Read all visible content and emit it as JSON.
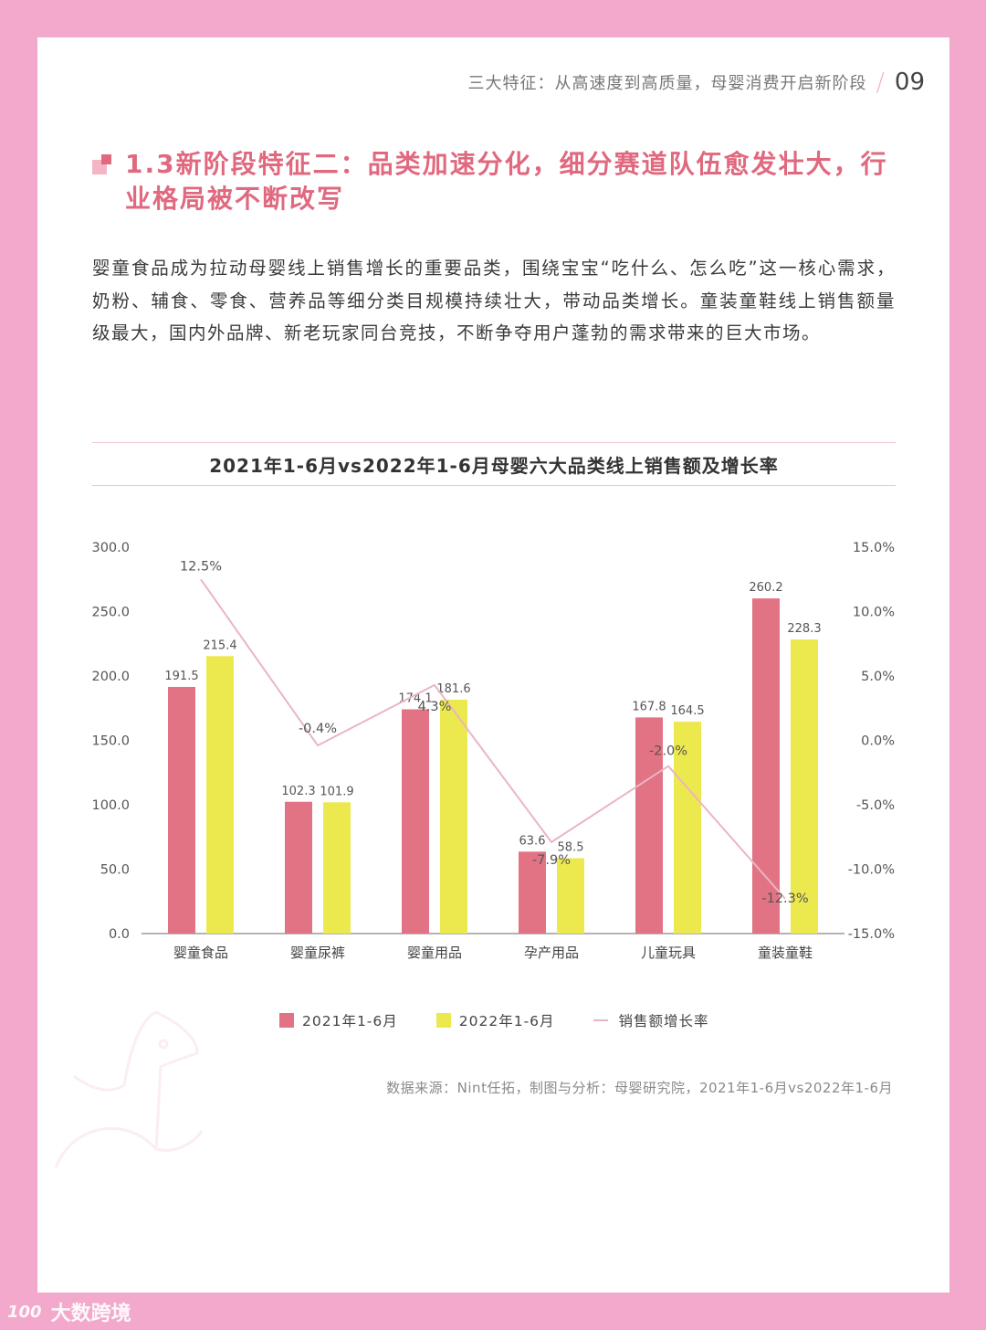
{
  "header": {
    "running_title": "三大特征：从高速度到高质量，母婴消费开启新阶段",
    "page_number": "09"
  },
  "section": {
    "title": "1.3新阶段特征二：品类加速分化，细分赛道队伍愈发壮大，行业格局被不断改写"
  },
  "body": {
    "paragraph": "婴童食品成为拉动母婴线上销售增长的重要品类，围绕宝宝“吃什么、怎么吃”这一核心需求，奶粉、辅食、零食、营养品等细分类目规模持续壮大，带动品类增长。童装童鞋线上销售额量级最大，国内外品牌、新老玩家同台竞技，不断争夺用户蓬勃的需求带来的巨大市场。"
  },
  "colors": {
    "frame": "#f2a9cb",
    "accent": "#e0697f",
    "series_2021": "#e27384",
    "series_2022": "#ece94f",
    "growth_line": "#eab5c3"
  },
  "chart_data": {
    "type": "bar",
    "title": "2021年1-6月vs2022年1-6月母婴六大品类线上销售额及增长率",
    "categories": [
      "婴童食品",
      "婴童尿裤",
      "婴童用品",
      "孕产用品",
      "儿童玩具",
      "童装童鞋"
    ],
    "series": [
      {
        "name": "2021年1-6月",
        "type": "bar",
        "axis": "left",
        "values": [
          191.5,
          102.3,
          174.1,
          63.6,
          167.8,
          260.2
        ]
      },
      {
        "name": "2022年1-6月",
        "type": "bar",
        "axis": "left",
        "values": [
          215.4,
          101.9,
          181.6,
          58.5,
          164.5,
          228.3
        ]
      },
      {
        "name": "销售额增长率",
        "type": "line",
        "axis": "right",
        "values": [
          12.5,
          -0.4,
          4.3,
          -7.9,
          -2.0,
          -12.3
        ],
        "labels": [
          "12.5%",
          "-0.4%",
          "4.3%",
          "-7.9%",
          "-2.0%",
          "-12.3%"
        ]
      }
    ],
    "left_axis": {
      "ticks": [
        "0.0",
        "50.0",
        "100.0",
        "150.0",
        "200.0",
        "250.0",
        "300.0"
      ],
      "ylim": [
        0,
        300
      ]
    },
    "right_axis": {
      "ticks": [
        "-15.0%",
        "-10.0%",
        "-5.0%",
        "0.0%",
        "5.0%",
        "10.0%",
        "15.0%"
      ],
      "ylim": [
        -15,
        15
      ]
    },
    "xlabel": "",
    "ylabel": "",
    "grid": false,
    "legend_position": "bottom"
  },
  "legend": {
    "items": [
      {
        "label": "2021年1-6月"
      },
      {
        "label": "2022年1-6月"
      },
      {
        "label": "销售额增长率"
      }
    ]
  },
  "footer": {
    "source": "数据来源：Nint任拓，制图与分析：母婴研究院，2021年1-6月vs2022年1-6月",
    "watermark": "大数跨境",
    "watermark_logo": "100"
  }
}
